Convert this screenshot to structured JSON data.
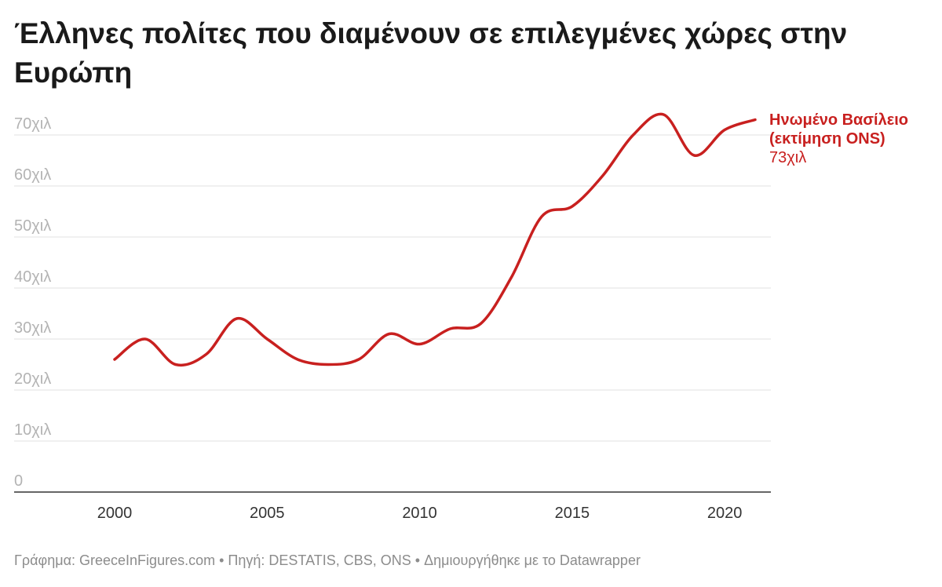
{
  "chart_data": {
    "type": "line",
    "title": "Έλληνες πολίτες που διαμένουν σε επιλεγμένες χώρες στην Ευρώπη",
    "xlabel": "",
    "ylabel": "",
    "ylim": [
      0,
      75000
    ],
    "xlim": [
      1999,
      2022
    ],
    "y_ticks": [
      {
        "value": 0,
        "label": "0"
      },
      {
        "value": 10000,
        "label": "10χιλ"
      },
      {
        "value": 20000,
        "label": "20χιλ"
      },
      {
        "value": 30000,
        "label": "30χιλ"
      },
      {
        "value": 40000,
        "label": "40χιλ"
      },
      {
        "value": 50000,
        "label": "50χιλ"
      },
      {
        "value": 60000,
        "label": "60χιλ"
      },
      {
        "value": 70000,
        "label": "70χιλ"
      }
    ],
    "x_ticks": [
      {
        "value": 2000,
        "label": "2000"
      },
      {
        "value": 2005,
        "label": "2005"
      },
      {
        "value": 2010,
        "label": "2010"
      },
      {
        "value": 2015,
        "label": "2015"
      },
      {
        "value": 2020,
        "label": "2020"
      }
    ],
    "grid": true,
    "series": [
      {
        "name": "Ηνωμένο Βασίλειο (εκτίμηση ONS)",
        "name_lines": [
          "Ηνωμένο Βασίλειο",
          "(εκτίμηση ONS)"
        ],
        "value_label": "73χιλ",
        "color": "#c8201f",
        "x": [
          2000,
          2001,
          2002,
          2003,
          2004,
          2005,
          2006,
          2007,
          2008,
          2009,
          2010,
          2011,
          2012,
          2013,
          2014,
          2015,
          2016,
          2017,
          2018,
          2019,
          2020,
          2021
        ],
        "values": [
          26000,
          30000,
          25000,
          27000,
          34000,
          30000,
          26000,
          25000,
          26000,
          31000,
          29000,
          32000,
          33000,
          42000,
          54000,
          56000,
          62000,
          70000,
          74000,
          66000,
          71000,
          73000
        ]
      }
    ]
  },
  "footer": "Γράφημα: GreeceInFigures.com • Πηγή: DESTATIS, CBS, ONS • Δημιουργήθηκε με το Datawrapper"
}
